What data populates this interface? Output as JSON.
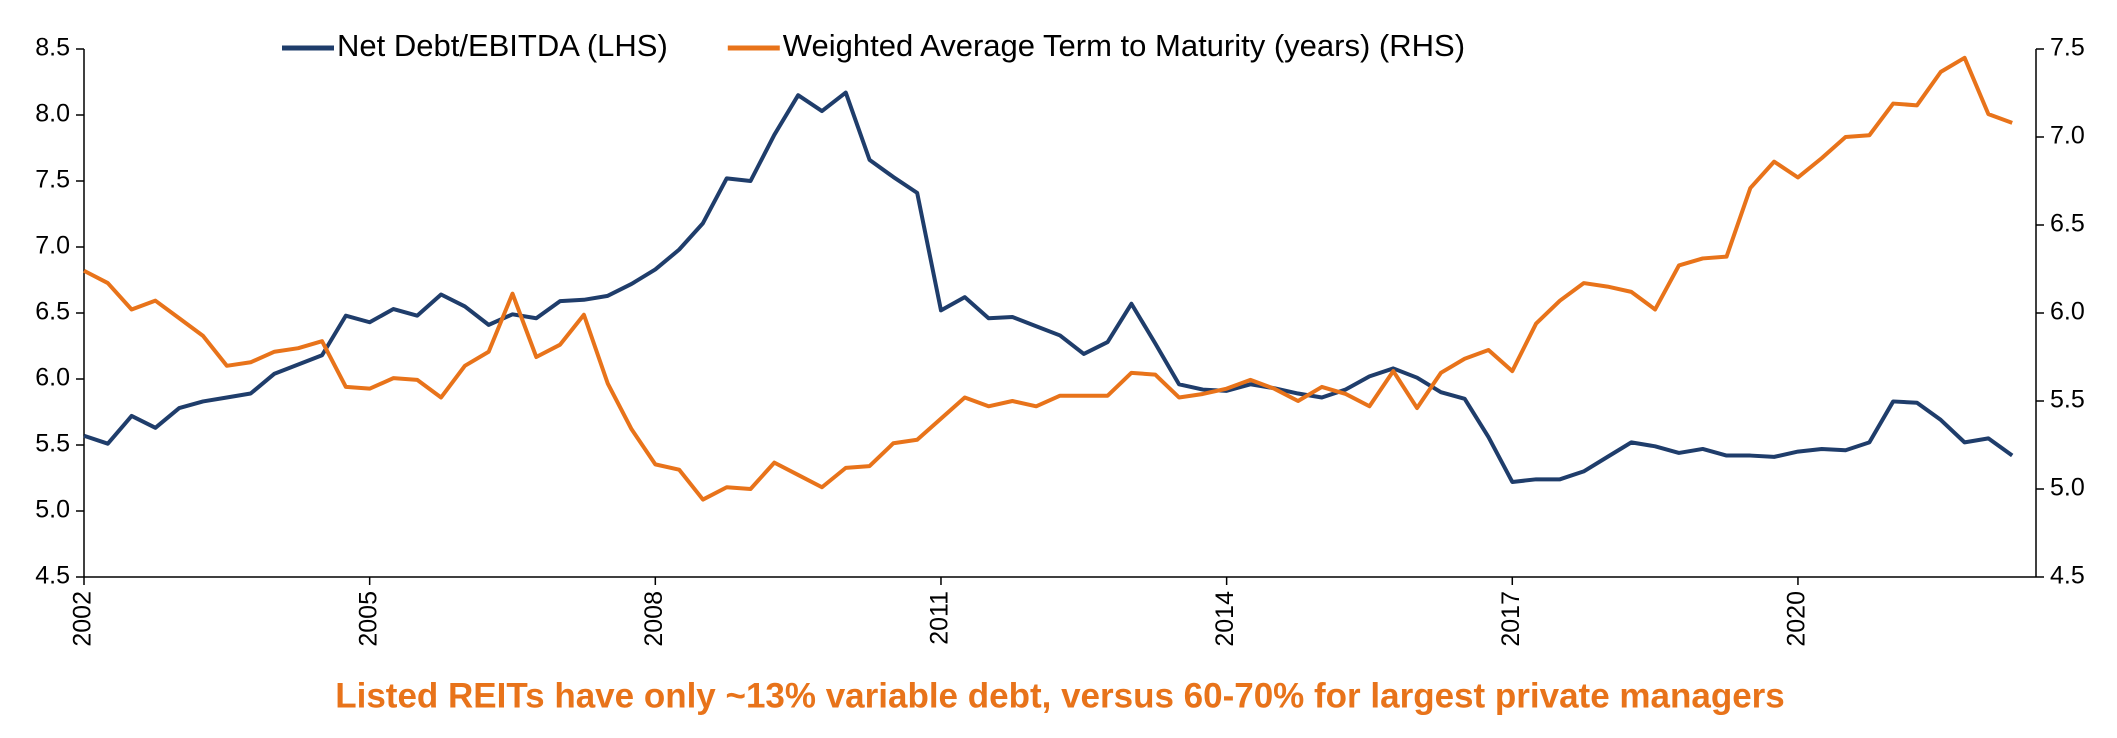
{
  "chart_data": {
    "type": "line",
    "caption": "Listed REITs have only ~13% variable debt, versus 60-70% for largest private managers",
    "x": [
      2002,
      2002.25,
      2002.5,
      2002.75,
      2003,
      2003.25,
      2003.5,
      2003.75,
      2004,
      2004.25,
      2004.5,
      2004.75,
      2005,
      2005.25,
      2005.5,
      2005.75,
      2006,
      2006.25,
      2006.5,
      2006.75,
      2007,
      2007.25,
      2007.5,
      2007.75,
      2008,
      2008.25,
      2008.5,
      2008.75,
      2009,
      2009.25,
      2009.5,
      2009.75,
      2010,
      2010.25,
      2010.5,
      2010.75,
      2011,
      2011.25,
      2011.5,
      2011.75,
      2012,
      2012.25,
      2012.5,
      2012.75,
      2013,
      2013.25,
      2013.5,
      2013.75,
      2014,
      2014.25,
      2014.5,
      2014.75,
      2015,
      2015.25,
      2015.5,
      2015.75,
      2016,
      2016.25,
      2016.5,
      2016.75,
      2017,
      2017.25,
      2017.5,
      2017.75,
      2018,
      2018.25,
      2018.5,
      2018.75,
      2019,
      2019.25,
      2019.5,
      2019.75,
      2020,
      2020.25,
      2020.5,
      2020.75,
      2021,
      2021.25,
      2021.5,
      2021.75,
      2022,
      2022.25
    ],
    "series": [
      {
        "name": "Net Debt/EBITDA (LHS)",
        "color": "#1f3d6b",
        "axis": "y",
        "values": [
          5.57,
          5.51,
          5.72,
          5.63,
          5.78,
          5.83,
          5.86,
          5.89,
          6.04,
          6.11,
          6.18,
          6.48,
          6.43,
          6.53,
          6.48,
          6.64,
          6.55,
          6.41,
          6.49,
          6.46,
          6.59,
          6.6,
          6.63,
          6.72,
          6.83,
          6.98,
          7.18,
          7.52,
          7.5,
          7.85,
          8.15,
          8.03,
          8.17,
          7.66,
          7.53,
          7.41,
          6.52,
          6.62,
          6.46,
          6.47,
          6.4,
          6.33,
          6.19,
          6.28,
          6.57,
          6.27,
          5.96,
          5.92,
          5.91,
          5.96,
          5.93,
          5.89,
          5.86,
          5.92,
          6.02,
          6.08,
          6.01,
          5.9,
          5.85,
          5.56,
          5.22,
          5.24,
          5.24,
          5.3,
          5.41,
          5.52,
          5.49,
          5.44,
          5.47,
          5.42,
          5.42,
          5.41,
          5.45,
          5.47,
          5.46,
          5.52,
          5.83,
          5.82,
          5.69,
          5.52,
          5.55,
          5.42
        ]
      },
      {
        "name": "Weighted Average Term to Maturity (years) (RHS)",
        "color": "#e8731a",
        "axis": "y2",
        "values": [
          6.24,
          6.17,
          6.02,
          6.07,
          5.97,
          5.87,
          5.7,
          5.72,
          5.78,
          5.8,
          5.84,
          5.58,
          5.57,
          5.63,
          5.62,
          5.52,
          5.7,
          5.78,
          6.11,
          5.75,
          5.82,
          5.99,
          5.6,
          5.34,
          5.14,
          5.11,
          4.94,
          5.01,
          5.0,
          5.15,
          5.08,
          5.01,
          5.12,
          5.13,
          5.26,
          5.28,
          5.4,
          5.52,
          5.47,
          5.5,
          5.47,
          5.53,
          5.53,
          5.53,
          5.66,
          5.65,
          5.52,
          5.54,
          5.57,
          5.62,
          5.57,
          5.5,
          5.58,
          5.54,
          5.47,
          5.67,
          5.46,
          5.66,
          5.74,
          5.79,
          5.67,
          5.94,
          6.07,
          6.17,
          6.15,
          6.12,
          6.02,
          6.27,
          6.31,
          6.32,
          6.71,
          6.86,
          6.77,
          6.88,
          7.0,
          7.01,
          7.19,
          7.18,
          7.37,
          7.45,
          7.13,
          7.08
        ]
      }
    ],
    "xlim": [
      2002,
      2022.5
    ],
    "xticks": [
      2002,
      2005,
      2008,
      2011,
      2014,
      2017,
      2020
    ],
    "ylim": [
      4.5,
      8.5
    ],
    "yticks": [
      {
        "value": 4.5,
        "label": "4.5"
      },
      {
        "value": 5,
        "label": "5.0"
      },
      {
        "value": 5.5,
        "label": "5.5"
      },
      {
        "value": 6,
        "label": "6.0"
      },
      {
        "value": 6.5,
        "label": "6.5"
      },
      {
        "value": 7,
        "label": "7.0"
      },
      {
        "value": 7.5,
        "label": "7.5"
      },
      {
        "value": 8,
        "label": "8.0"
      },
      {
        "value": 8.5,
        "label": "8.5"
      }
    ],
    "y2lim": [
      4.5,
      7.5
    ],
    "y2ticks": [
      {
        "value": 4.5,
        "label": "4.5"
      },
      {
        "value": 5,
        "label": "5.0"
      },
      {
        "value": 5.5,
        "label": "5.5"
      },
      {
        "value": 6,
        "label": "6.0"
      },
      {
        "value": 6.5,
        "label": "6.5"
      },
      {
        "value": 7,
        "label": "7.0"
      },
      {
        "value": 7.5,
        "label": "7.5"
      }
    ],
    "caption_color": "#e8731a",
    "grid": false,
    "legend": "top"
  }
}
